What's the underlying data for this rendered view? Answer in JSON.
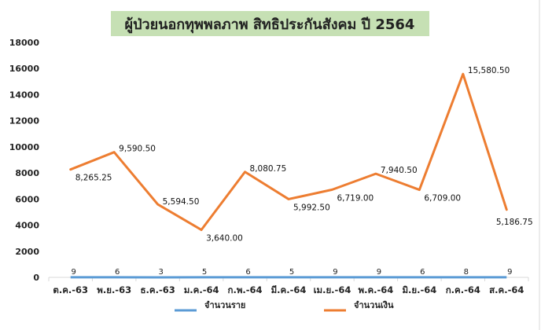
{
  "chart_data": {
    "type": "line",
    "title": "ผู้ป่วยนอกทุพพลภาพ สิทธิประกันสังคม ปี 2564",
    "categories": [
      "ต.ค.-63",
      "พ.ย.-63",
      "ธ.ค.-63",
      "ม.ค.-64",
      "ก.พ.-64",
      "มี.ค.-64",
      "เม.ย.-64",
      "พ.ค.-64",
      "มิ.ย.-64",
      "ก.ค.-64",
      "ส.ค.-64"
    ],
    "ylim": [
      0,
      18000
    ],
    "yticks": [
      "0",
      "2000",
      "4000",
      "6000",
      "8000",
      "10000",
      "12000",
      "14000",
      "16000",
      "18000"
    ],
    "grid": false,
    "legend_position": "bottom",
    "series": [
      {
        "name": "จำนวนราย",
        "color": "#5B9BD5",
        "values": [
          9,
          6,
          3,
          5,
          6,
          5,
          9,
          9,
          6,
          8,
          9
        ],
        "labels": [
          "9",
          "6",
          "3",
          "5",
          "6",
          "5",
          "9",
          "9",
          "6",
          "8",
          "9"
        ]
      },
      {
        "name": "จำนวนเงิน",
        "color": "#ED7D31",
        "values": [
          8265.25,
          9590.5,
          5594.5,
          3640,
          8080.75,
          5992.5,
          6719,
          7940.5,
          6709,
          15580.5,
          5186.75
        ],
        "labels": [
          "8,265.25",
          "9,590.50",
          "5,594.50",
          "3,640.00",
          "8,080.75",
          "5,992.50",
          "6,719.00",
          "7,940.50",
          "6,709.00",
          "15,580.50",
          "5,186.75"
        ]
      }
    ],
    "title_background": "#C6E0B4"
  }
}
